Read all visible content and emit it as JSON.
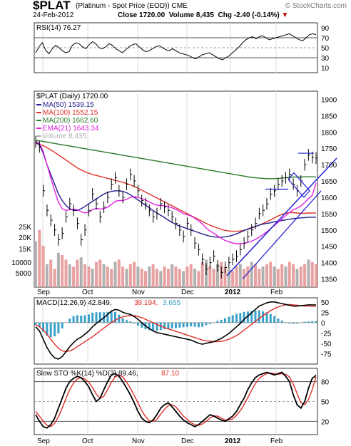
{
  "header": {
    "symbol": "$PLAT",
    "description": "(Platinum  - Spot Price (EOD))",
    "exchange": "CME",
    "date": "24-Feb-2012",
    "close_label": "Close",
    "close": "1720.00",
    "volume_label": "Volume",
    "volume": "8,435",
    "chg_label": "Chg",
    "chg": "-2.40 (-0.14%)",
    "brand": "© StockCharts.com"
  },
  "colors": {
    "price": "#000000",
    "ma50": "#1f1f8f",
    "ma100": "#e0302a",
    "ma200": "#2a7a2a",
    "ema21": "#e020e0",
    "volume": "#e8a0a0",
    "volume_gray": "#b0b0b0",
    "trend": "#1f1fd0",
    "macd_hist": "#3aa0c8",
    "rsi_fill": "#2a8a2a"
  },
  "x_labels": [
    "Sep",
    "Oct",
    "Nov",
    "Dec",
    "2012",
    "Feb"
  ],
  "chart_data": [
    {
      "type": "line",
      "panel": "RSI",
      "title": "RSI(14) 76.27",
      "value": 76.27,
      "ylim": [
        0,
        100
      ],
      "yticks": [
        10,
        30,
        50,
        70,
        90
      ],
      "overbought": 70,
      "oversold": 30,
      "values": [
        40,
        52,
        60,
        45,
        38,
        48,
        55,
        50,
        44,
        40,
        42,
        55,
        60,
        58,
        52,
        48,
        56,
        62,
        58,
        50,
        48,
        52,
        58,
        55,
        48,
        44,
        40,
        46,
        52,
        56,
        58,
        52,
        46,
        42,
        44,
        48,
        52,
        54,
        50,
        46,
        44,
        48,
        44,
        40,
        38,
        36,
        34,
        30,
        28,
        32,
        36,
        38,
        40,
        36,
        32,
        28,
        26,
        30,
        34,
        40,
        46,
        52,
        60,
        66,
        70,
        72,
        68,
        72,
        74,
        70,
        66,
        68,
        70,
        72,
        74,
        76,
        78,
        74,
        70,
        66,
        64,
        70,
        76,
        78,
        76.27
      ]
    },
    {
      "type": "line",
      "panel": "price",
      "title": "$PLAT (Daily) 1720.00",
      "ylim": [
        1325,
        1925
      ],
      "yticks": [
        1350,
        1400,
        1450,
        1500,
        1550,
        1600,
        1650,
        1700,
        1750,
        1800,
        1850,
        1900
      ],
      "legend": [
        {
          "name": "MA(50)",
          "value": "1539.15",
          "key": "ma50"
        },
        {
          "name": "MA(100)",
          "value": "1552.15",
          "key": "ma100"
        },
        {
          "name": "MA(200)",
          "value": "1662.60",
          "key": "ma200"
        },
        {
          "name": "EMA(21)",
          "value": "1643.34",
          "key": "ema21"
        },
        {
          "name": "Volume",
          "value": "8,435",
          "key": "volume_gray"
        }
      ],
      "close": [
        1770,
        1755,
        1620,
        1560,
        1530,
        1500,
        1470,
        1490,
        1540,
        1580,
        1560,
        1520,
        1470,
        1500,
        1560,
        1610,
        1580,
        1540,
        1570,
        1600,
        1640,
        1660,
        1620,
        1600,
        1640,
        1670,
        1650,
        1620,
        1590,
        1580,
        1560,
        1540,
        1550,
        1580,
        1570,
        1560,
        1540,
        1520,
        1500,
        1480,
        1520,
        1500,
        1460,
        1440,
        1410,
        1380,
        1400,
        1420,
        1390,
        1370,
        1385,
        1400,
        1410,
        1420,
        1440,
        1460,
        1480,
        1500,
        1520,
        1550,
        1560,
        1580,
        1610,
        1620,
        1640,
        1650,
        1660,
        1670,
        1640,
        1620,
        1650,
        1700,
        1730,
        1722,
        1720
      ],
      "ma50": [
        1770,
        1760,
        1735,
        1700,
        1670,
        1640,
        1610,
        1590,
        1575,
        1565,
        1560,
        1560,
        1565,
        1572,
        1580,
        1588,
        1595,
        1603,
        1610,
        1615,
        1618,
        1620,
        1620,
        1618,
        1614,
        1608,
        1600,
        1592,
        1584,
        1576,
        1568,
        1560,
        1552,
        1545,
        1538,
        1530,
        1523,
        1517,
        1512,
        1508,
        1504,
        1500,
        1496,
        1492,
        1488,
        1484,
        1481,
        1479,
        1478,
        1478,
        1479,
        1481,
        1484,
        1488,
        1493,
        1498,
        1503,
        1507,
        1511,
        1515,
        1518,
        1520,
        1522,
        1525,
        1527,
        1529,
        1531,
        1533,
        1535,
        1536,
        1537,
        1538,
        1539,
        1539,
        1539.15
      ],
      "ma100": [
        1765,
        1762,
        1758,
        1752,
        1745,
        1738,
        1730,
        1722,
        1714,
        1706,
        1698,
        1690,
        1684,
        1678,
        1674,
        1670,
        1667,
        1664,
        1661,
        1658,
        1655,
        1652,
        1649,
        1646,
        1642,
        1638,
        1633,
        1628,
        1622,
        1616,
        1610,
        1604,
        1598,
        1592,
        1586,
        1580,
        1574,
        1568,
        1562,
        1556,
        1550,
        1544,
        1538,
        1532,
        1526,
        1520,
        1515,
        1510,
        1506,
        1502,
        1499,
        1497,
        1496,
        1496,
        1497,
        1499,
        1502,
        1506,
        1510,
        1515,
        1520,
        1525,
        1531,
        1537,
        1543,
        1548,
        1551,
        1553,
        1553,
        1552,
        1551,
        1551,
        1552,
        1552,
        1552.15
      ],
      "ma200": [
        1775,
        1773,
        1771,
        1769,
        1767,
        1765,
        1763,
        1761,
        1759,
        1757,
        1755,
        1753,
        1751,
        1749,
        1747,
        1745,
        1743,
        1741,
        1739,
        1737,
        1735,
        1733,
        1731,
        1729,
        1727,
        1725,
        1723,
        1721,
        1719,
        1717,
        1715,
        1713,
        1711,
        1709,
        1707,
        1705,
        1703,
        1701,
        1699,
        1697,
        1695,
        1693,
        1691,
        1689,
        1687,
        1685,
        1683,
        1681,
        1679,
        1677,
        1675,
        1673,
        1671,
        1669,
        1667,
        1665,
        1663,
        1661,
        1660,
        1659,
        1658,
        1657,
        1657,
        1657,
        1658,
        1659,
        1660,
        1661,
        1662,
        1662,
        1662,
        1663,
        1663,
        1662.8,
        1662.6
      ],
      "ema21": [
        1770,
        1765,
        1740,
        1700,
        1660,
        1620,
        1585,
        1565,
        1560,
        1562,
        1564,
        1562,
        1556,
        1552,
        1555,
        1562,
        1566,
        1564,
        1565,
        1570,
        1578,
        1588,
        1590,
        1590,
        1594,
        1600,
        1602,
        1600,
        1596,
        1592,
        1586,
        1580,
        1576,
        1575,
        1574,
        1572,
        1568,
        1563,
        1557,
        1550,
        1547,
        1543,
        1536,
        1528,
        1518,
        1506,
        1497,
        1490,
        1482,
        1474,
        1468,
        1464,
        1460,
        1458,
        1458,
        1459,
        1462,
        1466,
        1471,
        1478,
        1486,
        1494,
        1504,
        1514,
        1524,
        1534,
        1544,
        1554,
        1562,
        1567,
        1574,
        1584,
        1596,
        1606,
        1643.34
      ],
      "volume": [
        20,
        25,
        18,
        10,
        12,
        8,
        15,
        14,
        12,
        10,
        9,
        12,
        13,
        10,
        9,
        8,
        11,
        12,
        10,
        9,
        8,
        11,
        12,
        9,
        8,
        10,
        11,
        9,
        8,
        7,
        9,
        10,
        8,
        7,
        9,
        8,
        10,
        9,
        8,
        7,
        9,
        10,
        8,
        7,
        11,
        12,
        9,
        8,
        10,
        11,
        9,
        8,
        7,
        9,
        10,
        8,
        9,
        11,
        10,
        8,
        9,
        10,
        11,
        9,
        8,
        10,
        9,
        11,
        10,
        8,
        9,
        10,
        12,
        11,
        10
      ],
      "volume_ticks": [
        "25K",
        "20K",
        "15K",
        "10000",
        "5000"
      ]
    },
    {
      "type": "line",
      "panel": "MACD",
      "title": "MACD(12,26,9)",
      "values_text": {
        "macd": "42.849",
        "signal": "39.194",
        "hist": "3.655"
      },
      "ylim": [
        -100,
        60
      ],
      "yticks": [
        50,
        25,
        0,
        -25,
        -50,
        -75
      ],
      "macd": [
        -10,
        -20,
        -40,
        -60,
        -75,
        -85,
        -88,
        -82,
        -70,
        -58,
        -48,
        -40,
        -35,
        -28,
        -20,
        -10,
        -2,
        5,
        12,
        20,
        28,
        32,
        30,
        25,
        22,
        20,
        15,
        8,
        0,
        -8,
        -14,
        -20,
        -24,
        -26,
        -28,
        -30,
        -32,
        -34,
        -36,
        -38,
        -40,
        -42,
        -46,
        -50,
        -52,
        -50,
        -48,
        -46,
        -42,
        -38,
        -32,
        -26,
        -18,
        -10,
        -2,
        8,
        16,
        24,
        32,
        40,
        44,
        48,
        50,
        50,
        48,
        46,
        44,
        42,
        40,
        40,
        41,
        42,
        43,
        43,
        42.849
      ],
      "signal": [
        -5,
        -10,
        -18,
        -28,
        -40,
        -52,
        -62,
        -68,
        -70,
        -68,
        -64,
        -58,
        -52,
        -46,
        -40,
        -34,
        -27,
        -20,
        -13,
        -6,
        0,
        6,
        11,
        14,
        16,
        17,
        17,
        15,
        12,
        8,
        4,
        0,
        -4,
        -8,
        -12,
        -15,
        -18,
        -21,
        -24,
        -27,
        -30,
        -33,
        -36,
        -39,
        -42,
        -44,
        -45,
        -46,
        -46,
        -45,
        -43,
        -40,
        -36,
        -31,
        -25,
        -18,
        -11,
        -4,
        3,
        10,
        17,
        23,
        29,
        34,
        38,
        41,
        43,
        44,
        43,
        42,
        41,
        40,
        40,
        39.5,
        39.194
      ]
    },
    {
      "type": "line",
      "panel": "STO",
      "title": "Slow STO %K(14) %D(3)",
      "values_text": {
        "k": "89.46",
        "d": "87.10"
      },
      "ylim": [
        0,
        100
      ],
      "yticks": [
        20,
        50,
        80
      ],
      "k": [
        30,
        20,
        12,
        10,
        15,
        25,
        40,
        55,
        70,
        80,
        85,
        88,
        86,
        80,
        72,
        60,
        50,
        55,
        68,
        80,
        90,
        92,
        88,
        80,
        70,
        60,
        48,
        35,
        25,
        20,
        18,
        22,
        30,
        40,
        45,
        48,
        42,
        35,
        28,
        22,
        18,
        15,
        12,
        15,
        20,
        25,
        30,
        28,
        25,
        22,
        20,
        24,
        28,
        35,
        45,
        55,
        68,
        78,
        86,
        90,
        92,
        94,
        92,
        90,
        92,
        94,
        88,
        80,
        60,
        45,
        40,
        50,
        70,
        85,
        89.46
      ],
      "d": [
        35,
        28,
        20,
        14,
        12,
        17,
        27,
        40,
        55,
        68,
        78,
        84,
        86,
        84,
        79,
        71,
        61,
        55,
        58,
        68,
        79,
        87,
        90,
        87,
        79,
        70,
        59,
        48,
        36,
        27,
        21,
        20,
        23,
        31,
        38,
        44,
        45,
        42,
        35,
        28,
        23,
        18,
        15,
        14,
        16,
        20,
        25,
        28,
        28,
        25,
        22,
        22,
        24,
        29,
        36,
        45,
        56,
        67,
        77,
        85,
        89,
        92,
        93,
        92,
        91,
        92,
        91,
        87,
        76,
        62,
        48,
        45,
        53,
        68,
        87.1
      ]
    }
  ]
}
